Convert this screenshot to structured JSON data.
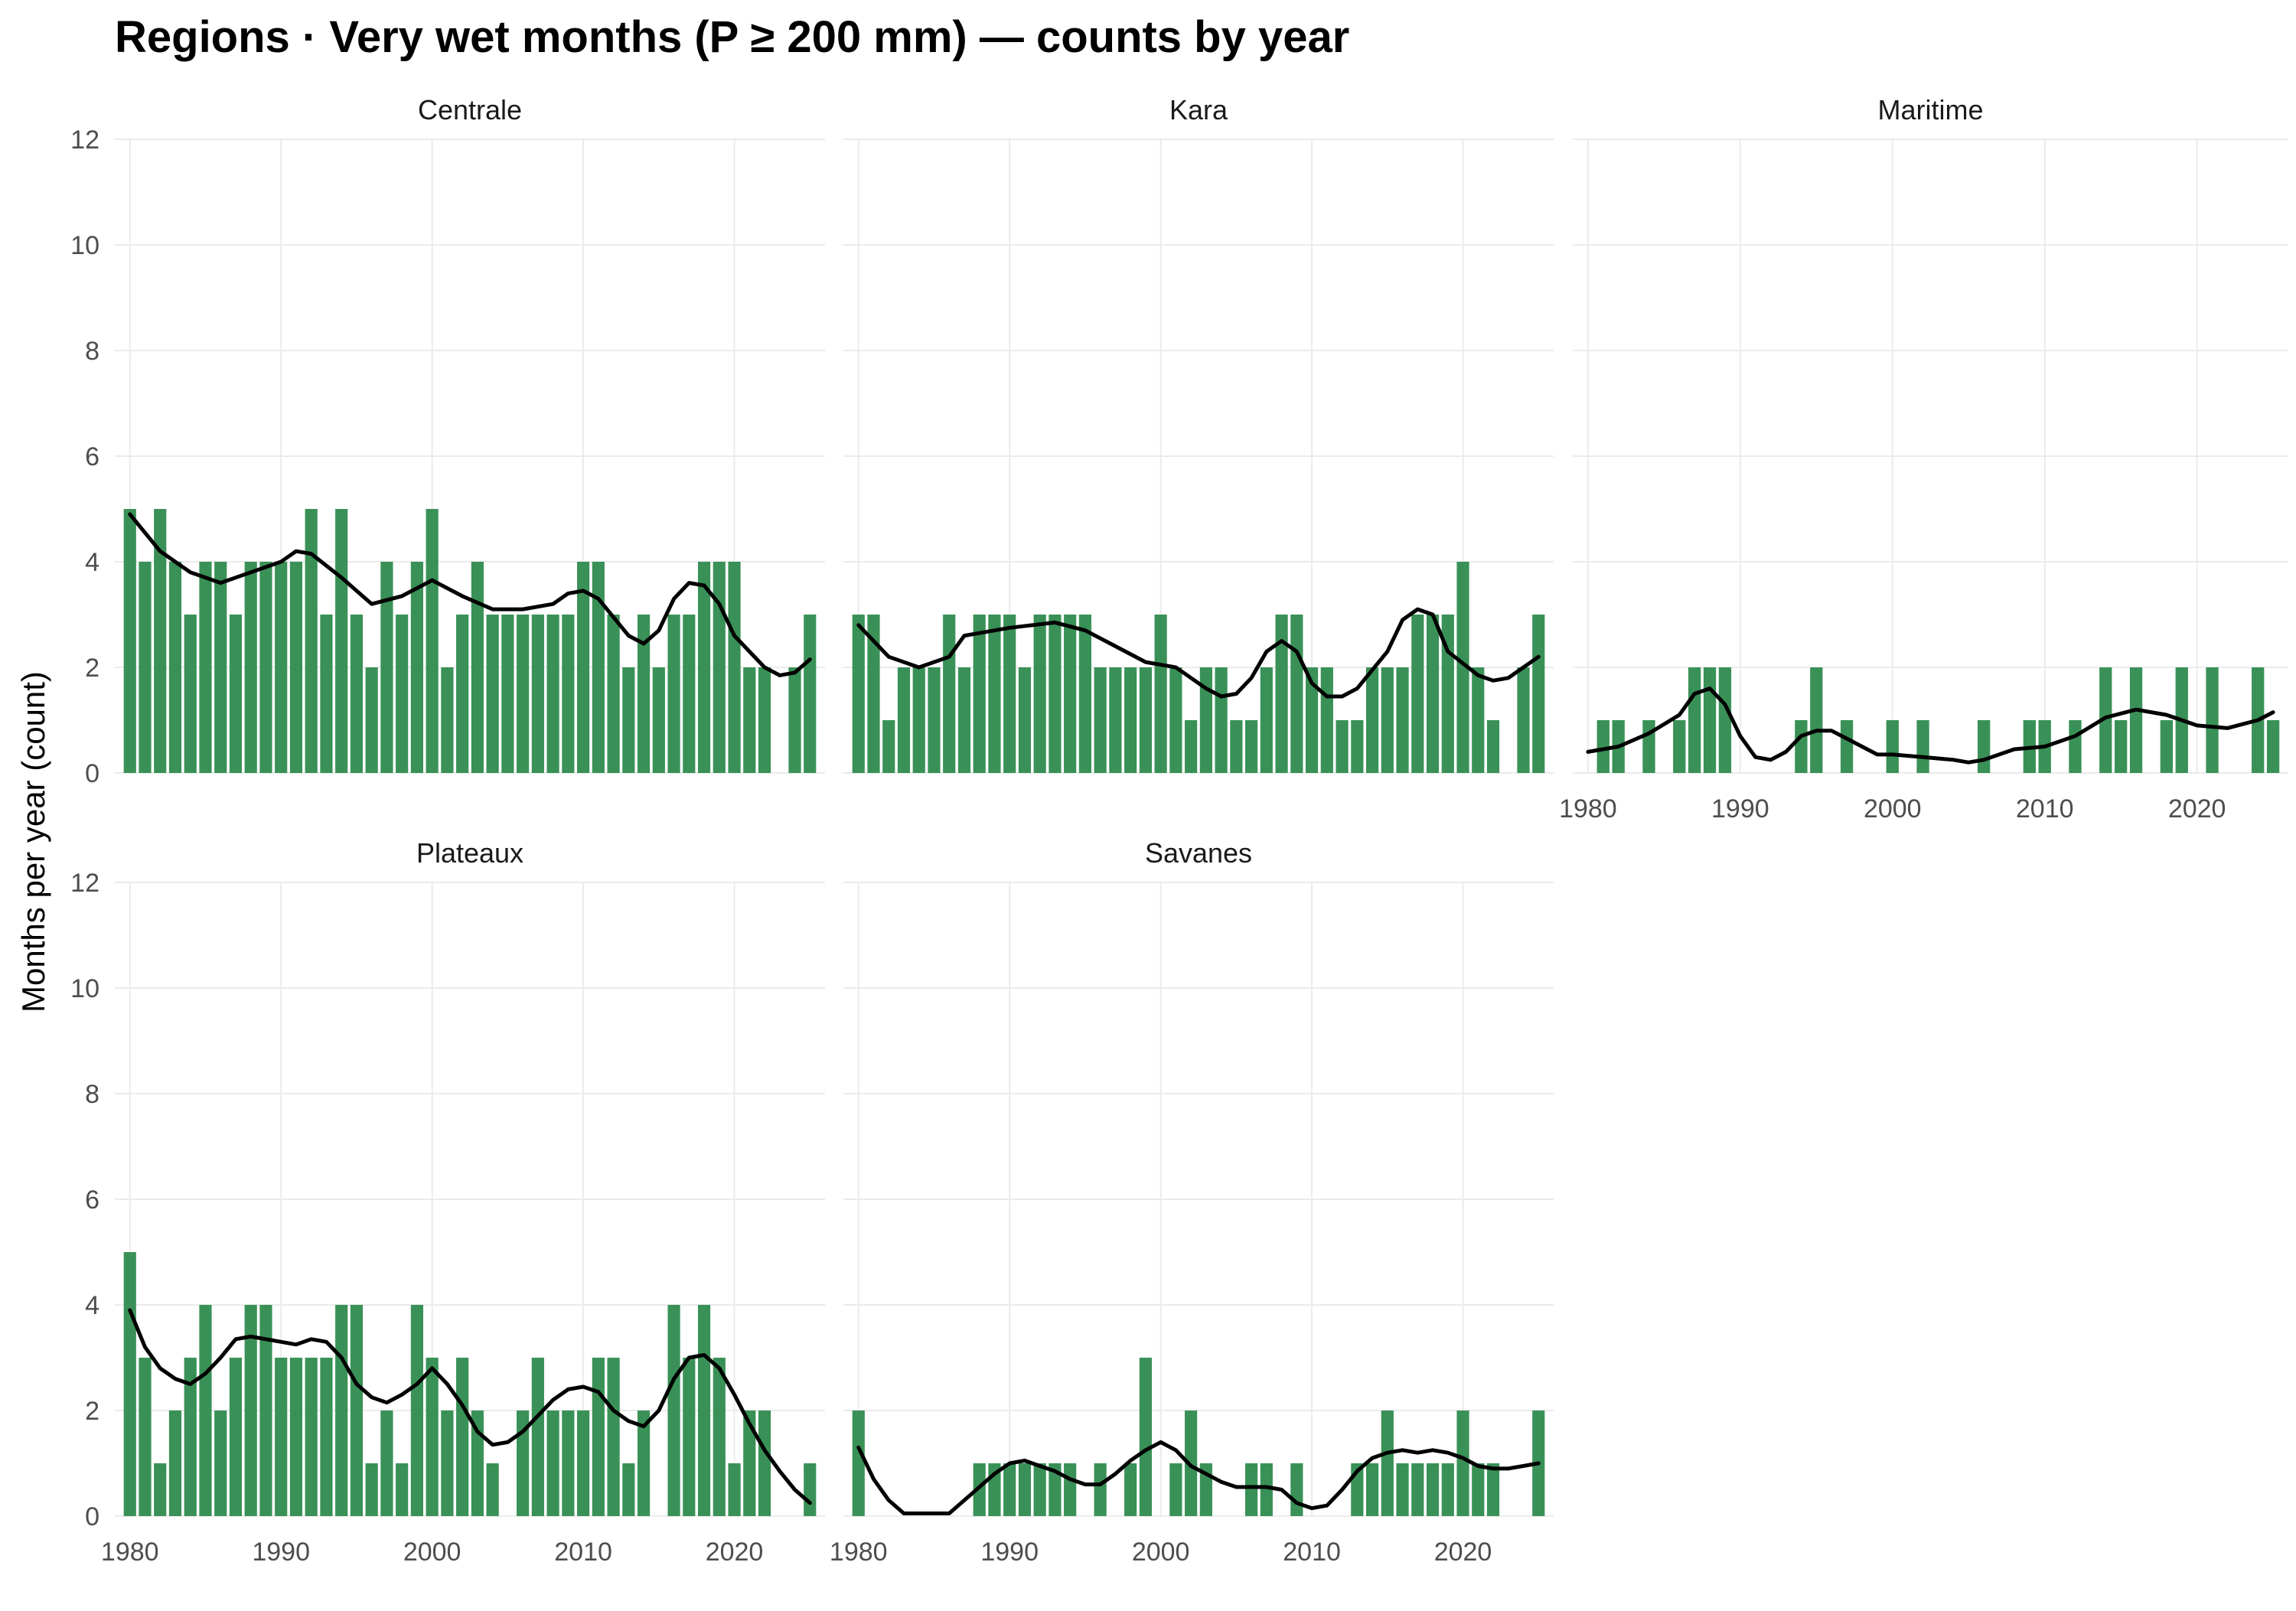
{
  "chart_data": {
    "type": "bar",
    "title": "Regions · Very wet months (P ≥ 200 mm) — counts by year",
    "xlabel": "",
    "ylabel": "Months per year (count)",
    "xlim": [
      1979,
      2026
    ],
    "ylim": [
      0,
      12
    ],
    "x_ticks": [
      "1980",
      "1990",
      "2000",
      "2010",
      "2020"
    ],
    "y_ticks": [
      "0",
      "2",
      "4",
      "6",
      "8",
      "10",
      "12"
    ],
    "grid": true,
    "bar_color": "#3a9157",
    "smooth_color": "#000000",
    "panels": [
      {
        "name": "Centrale",
        "years": [
          1980,
          1981,
          1982,
          1983,
          1984,
          1985,
          1986,
          1987,
          1988,
          1989,
          1990,
          1991,
          1992,
          1993,
          1994,
          1995,
          1996,
          1997,
          1998,
          1999,
          2000,
          2001,
          2002,
          2003,
          2004,
          2005,
          2006,
          2007,
          2008,
          2009,
          2010,
          2011,
          2012,
          2013,
          2014,
          2015,
          2016,
          2017,
          2018,
          2019,
          2020,
          2021,
          2022,
          2024,
          2025
        ],
        "values": [
          5,
          4,
          5,
          4,
          3,
          4,
          4,
          3,
          4,
          4,
          4,
          4,
          5,
          3,
          5,
          3,
          2,
          4,
          3,
          4,
          5,
          2,
          3,
          4,
          3,
          3,
          3,
          3,
          3,
          3,
          4,
          4,
          3,
          2,
          3,
          2,
          3,
          3,
          4,
          4,
          4,
          2,
          2,
          2,
          3
        ],
        "smooth": [
          [
            1980,
            4.9
          ],
          [
            1982,
            4.2
          ],
          [
            1984,
            3.8
          ],
          [
            1986,
            3.6
          ],
          [
            1988,
            3.8
          ],
          [
            1990,
            4.0
          ],
          [
            1991,
            4.2
          ],
          [
            1992,
            4.15
          ],
          [
            1994,
            3.7
          ],
          [
            1996,
            3.2
          ],
          [
            1998,
            3.35
          ],
          [
            2000,
            3.65
          ],
          [
            2002,
            3.35
          ],
          [
            2004,
            3.1
          ],
          [
            2006,
            3.1
          ],
          [
            2008,
            3.2
          ],
          [
            2009,
            3.4
          ],
          [
            2010,
            3.45
          ],
          [
            2011,
            3.3
          ],
          [
            2013,
            2.6
          ],
          [
            2014,
            2.45
          ],
          [
            2015,
            2.7
          ],
          [
            2016,
            3.3
          ],
          [
            2017,
            3.6
          ],
          [
            2018,
            3.55
          ],
          [
            2019,
            3.2
          ],
          [
            2020,
            2.6
          ],
          [
            2022,
            2.0
          ],
          [
            2023,
            1.85
          ],
          [
            2024,
            1.9
          ],
          [
            2025,
            2.15
          ]
        ]
      },
      {
        "name": "Kara",
        "years": [
          1980,
          1981,
          1982,
          1983,
          1984,
          1985,
          1986,
          1987,
          1988,
          1989,
          1990,
          1991,
          1992,
          1993,
          1994,
          1995,
          1996,
          1997,
          1998,
          1999,
          2000,
          2001,
          2002,
          2003,
          2004,
          2005,
          2006,
          2007,
          2008,
          2009,
          2010,
          2011,
          2012,
          2013,
          2014,
          2015,
          2016,
          2017,
          2018,
          2019,
          2020,
          2021,
          2022,
          2024,
          2025
        ],
        "values": [
          3,
          3,
          1,
          2,
          2,
          2,
          3,
          2,
          3,
          3,
          3,
          2,
          3,
          3,
          3,
          3,
          2,
          2,
          2,
          2,
          3,
          2,
          1,
          2,
          2,
          1,
          1,
          2,
          3,
          3,
          2,
          2,
          1,
          1,
          2,
          2,
          2,
          3,
          3,
          3,
          4,
          2,
          1,
          2,
          3
        ],
        "smooth": [
          [
            1980,
            2.8
          ],
          [
            1982,
            2.2
          ],
          [
            1984,
            2.0
          ],
          [
            1986,
            2.2
          ],
          [
            1987,
            2.6
          ],
          [
            1990,
            2.75
          ],
          [
            1993,
            2.85
          ],
          [
            1995,
            2.7
          ],
          [
            1997,
            2.4
          ],
          [
            1999,
            2.1
          ],
          [
            2001,
            2.0
          ],
          [
            2003,
            1.6
          ],
          [
            2004,
            1.45
          ],
          [
            2005,
            1.5
          ],
          [
            2006,
            1.8
          ],
          [
            2007,
            2.3
          ],
          [
            2008,
            2.5
          ],
          [
            2009,
            2.3
          ],
          [
            2010,
            1.7
          ],
          [
            2011,
            1.45
          ],
          [
            2012,
            1.45
          ],
          [
            2013,
            1.6
          ],
          [
            2015,
            2.3
          ],
          [
            2016,
            2.9
          ],
          [
            2017,
            3.1
          ],
          [
            2018,
            3.0
          ],
          [
            2019,
            2.3
          ],
          [
            2021,
            1.85
          ],
          [
            2022,
            1.75
          ],
          [
            2023,
            1.8
          ],
          [
            2025,
            2.2
          ]
        ]
      },
      {
        "name": "Maritime",
        "years": [
          1980,
          1981,
          1982,
          1983,
          1984,
          1985,
          1986,
          1987,
          1988,
          1989,
          1990,
          1991,
          1992,
          1993,
          1994,
          1995,
          1996,
          1997,
          1998,
          1999,
          2000,
          2001,
          2002,
          2003,
          2004,
          2005,
          2006,
          2007,
          2008,
          2009,
          2010,
          2011,
          2012,
          2013,
          2014,
          2015,
          2016,
          2017,
          2018,
          2019,
          2020,
          2021,
          2022,
          2023,
          2024,
          2025
        ],
        "values": [
          0,
          1,
          1,
          0,
          1,
          0,
          1,
          2,
          2,
          2,
          0,
          0,
          0,
          0,
          1,
          2,
          0,
          1,
          0,
          0,
          1,
          0,
          1,
          0,
          0,
          0,
          1,
          0,
          0,
          1,
          1,
          0,
          1,
          0,
          2,
          1,
          2,
          0,
          1,
          2,
          0,
          2,
          0,
          0,
          2,
          1
        ],
        "smooth": [
          [
            1980,
            0.4
          ],
          [
            1982,
            0.5
          ],
          [
            1984,
            0.75
          ],
          [
            1986,
            1.1
          ],
          [
            1987,
            1.5
          ],
          [
            1988,
            1.6
          ],
          [
            1989,
            1.3
          ],
          [
            1990,
            0.7
          ],
          [
            1991,
            0.3
          ],
          [
            1992,
            0.25
          ],
          [
            1993,
            0.4
          ],
          [
            1994,
            0.7
          ],
          [
            1995,
            0.8
          ],
          [
            1996,
            0.8
          ],
          [
            1997,
            0.65
          ],
          [
            1998,
            0.5
          ],
          [
            1999,
            0.35
          ],
          [
            2000,
            0.35
          ],
          [
            2002,
            0.3
          ],
          [
            2004,
            0.25
          ],
          [
            2005,
            0.2
          ],
          [
            2006,
            0.25
          ],
          [
            2008,
            0.45
          ],
          [
            2010,
            0.5
          ],
          [
            2012,
            0.7
          ],
          [
            2014,
            1.05
          ],
          [
            2016,
            1.2
          ],
          [
            2018,
            1.1
          ],
          [
            2020,
            0.9
          ],
          [
            2022,
            0.85
          ],
          [
            2024,
            1.0
          ],
          [
            2025,
            1.15
          ]
        ]
      },
      {
        "name": "Plateaux",
        "years": [
          1980,
          1981,
          1982,
          1983,
          1984,
          1985,
          1986,
          1987,
          1988,
          1989,
          1990,
          1991,
          1992,
          1993,
          1994,
          1995,
          1996,
          1997,
          1998,
          1999,
          2000,
          2001,
          2002,
          2003,
          2004,
          2005,
          2006,
          2007,
          2008,
          2009,
          2010,
          2011,
          2012,
          2013,
          2014,
          2015,
          2016,
          2017,
          2018,
          2019,
          2020,
          2021,
          2022,
          2023,
          2024,
          2025
        ],
        "values": [
          5,
          3,
          1,
          2,
          3,
          4,
          2,
          3,
          4,
          4,
          3,
          3,
          3,
          3,
          4,
          4,
          1,
          2,
          1,
          4,
          3,
          2,
          3,
          2,
          1,
          0,
          2,
          3,
          2,
          2,
          2,
          3,
          3,
          1,
          2,
          0,
          4,
          3,
          4,
          3,
          1,
          2,
          2,
          0,
          0,
          1
        ],
        "smooth": [
          [
            1980,
            3.9
          ],
          [
            1981,
            3.2
          ],
          [
            1982,
            2.8
          ],
          [
            1983,
            2.6
          ],
          [
            1984,
            2.5
          ],
          [
            1985,
            2.7
          ],
          [
            1986,
            3.0
          ],
          [
            1987,
            3.35
          ],
          [
            1988,
            3.4
          ],
          [
            1990,
            3.3
          ],
          [
            1991,
            3.25
          ],
          [
            1992,
            3.35
          ],
          [
            1993,
            3.3
          ],
          [
            1994,
            3.0
          ],
          [
            1995,
            2.5
          ],
          [
            1996,
            2.25
          ],
          [
            1997,
            2.15
          ],
          [
            1998,
            2.3
          ],
          [
            1999,
            2.5
          ],
          [
            2000,
            2.8
          ],
          [
            2001,
            2.5
          ],
          [
            2002,
            2.1
          ],
          [
            2003,
            1.6
          ],
          [
            2004,
            1.35
          ],
          [
            2005,
            1.4
          ],
          [
            2006,
            1.6
          ],
          [
            2007,
            1.9
          ],
          [
            2008,
            2.2
          ],
          [
            2009,
            2.4
          ],
          [
            2010,
            2.45
          ],
          [
            2011,
            2.35
          ],
          [
            2012,
            2.0
          ],
          [
            2013,
            1.8
          ],
          [
            2014,
            1.7
          ],
          [
            2015,
            2.0
          ],
          [
            2016,
            2.6
          ],
          [
            2017,
            3.0
          ],
          [
            2018,
            3.05
          ],
          [
            2019,
            2.8
          ],
          [
            2020,
            2.3
          ],
          [
            2021,
            1.75
          ],
          [
            2022,
            1.25
          ],
          [
            2023,
            0.85
          ],
          [
            2024,
            0.5
          ],
          [
            2025,
            0.25
          ]
        ]
      },
      {
        "name": "Savanes",
        "years": [
          1980,
          1981,
          1982,
          1983,
          1984,
          1985,
          1986,
          1987,
          1988,
          1989,
          1990,
          1991,
          1992,
          1993,
          1994,
          1995,
          1996,
          1997,
          1998,
          1999,
          2000,
          2001,
          2002,
          2003,
          2004,
          2005,
          2006,
          2007,
          2008,
          2009,
          2010,
          2011,
          2012,
          2013,
          2014,
          2015,
          2016,
          2017,
          2018,
          2019,
          2020,
          2021,
          2022,
          2023,
          2024,
          2025
        ],
        "values": [
          2,
          0,
          0,
          0,
          0,
          0,
          0,
          0,
          1,
          1,
          1,
          1,
          1,
          1,
          1,
          0,
          1,
          0,
          1,
          3,
          0,
          1,
          2,
          1,
          0,
          0,
          1,
          1,
          0,
          1,
          0,
          0,
          0,
          1,
          1,
          2,
          1,
          1,
          1,
          1,
          2,
          1,
          1,
          0,
          0,
          2
        ],
        "smooth": [
          [
            1980,
            1.3
          ],
          [
            1981,
            0.7
          ],
          [
            1982,
            0.3
          ],
          [
            1983,
            0.05
          ],
          [
            1984,
            0.05
          ],
          [
            1986,
            0.05
          ],
          [
            1987,
            0.3
          ],
          [
            1988,
            0.55
          ],
          [
            1989,
            0.8
          ],
          [
            1990,
            1.0
          ],
          [
            1991,
            1.05
          ],
          [
            1992,
            0.95
          ],
          [
            1993,
            0.85
          ],
          [
            1994,
            0.7
          ],
          [
            1995,
            0.6
          ],
          [
            1996,
            0.6
          ],
          [
            1997,
            0.8
          ],
          [
            1998,
            1.05
          ],
          [
            1999,
            1.25
          ],
          [
            2000,
            1.4
          ],
          [
            2001,
            1.25
          ],
          [
            2002,
            0.95
          ],
          [
            2003,
            0.8
          ],
          [
            2004,
            0.65
          ],
          [
            2005,
            0.55
          ],
          [
            2006,
            0.55
          ],
          [
            2007,
            0.55
          ],
          [
            2008,
            0.5
          ],
          [
            2009,
            0.25
          ],
          [
            2010,
            0.15
          ],
          [
            2011,
            0.2
          ],
          [
            2012,
            0.5
          ],
          [
            2013,
            0.85
          ],
          [
            2014,
            1.1
          ],
          [
            2015,
            1.2
          ],
          [
            2016,
            1.25
          ],
          [
            2017,
            1.2
          ],
          [
            2018,
            1.25
          ],
          [
            2019,
            1.2
          ],
          [
            2020,
            1.1
          ],
          [
            2021,
            0.95
          ],
          [
            2022,
            0.9
          ],
          [
            2023,
            0.9
          ],
          [
            2024,
            0.95
          ],
          [
            2025,
            1.0
          ]
        ]
      }
    ]
  }
}
